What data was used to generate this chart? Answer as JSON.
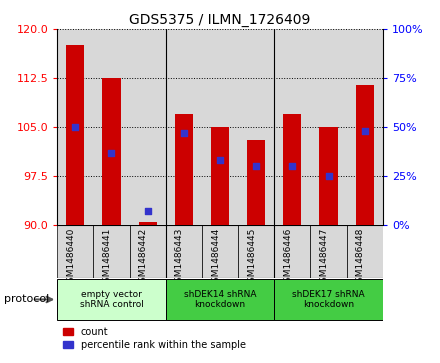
{
  "title": "GDS5375 / ILMN_1726409",
  "samples": [
    "GSM1486440",
    "GSM1486441",
    "GSM1486442",
    "GSM1486443",
    "GSM1486444",
    "GSM1486445",
    "GSM1486446",
    "GSM1486447",
    "GSM1486448"
  ],
  "counts": [
    117.5,
    112.5,
    90.5,
    107.0,
    105.0,
    103.0,
    107.0,
    105.0,
    111.5
  ],
  "percentile_ranks": [
    50,
    37,
    7,
    47,
    33,
    30,
    30,
    25,
    48
  ],
  "ylim_left": [
    90,
    120
  ],
  "ylim_right": [
    0,
    100
  ],
  "yticks_left": [
    90,
    97.5,
    105,
    112.5,
    120
  ],
  "yticks_right": [
    0,
    25,
    50,
    75,
    100
  ],
  "bar_color": "#cc0000",
  "dot_color": "#3333cc",
  "bar_bottom": 90,
  "groups": [
    {
      "label": "empty vector\nshRNA control",
      "start": 0,
      "end": 3,
      "color": "#ccffcc"
    },
    {
      "label": "shDEK14 shRNA\nknockdown",
      "start": 3,
      "end": 6,
      "color": "#44cc44"
    },
    {
      "label": "shDEK17 shRNA\nknockdown",
      "start": 6,
      "end": 9,
      "color": "#44cc44"
    }
  ],
  "protocol_label": "protocol",
  "legend_count_label": "count",
  "legend_percentile_label": "percentile rank within the sample",
  "grid_color": "black",
  "col_bg": "#d8d8d8",
  "plot_bg": "white"
}
